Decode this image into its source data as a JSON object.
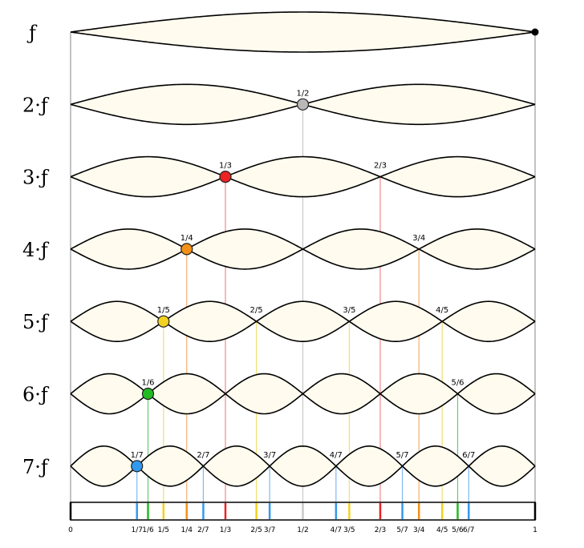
{
  "harmonics": [
    {
      "label": "ƒ",
      "n": 1
    },
    {
      "label": "2·ƒ",
      "n": 2
    },
    {
      "label": "3·ƒ",
      "n": 3
    },
    {
      "label": "4·ƒ",
      "n": 4
    },
    {
      "label": "5·ƒ",
      "n": 5
    },
    {
      "label": "6·ƒ",
      "n": 6
    },
    {
      "label": "7·ƒ",
      "n": 7
    }
  ],
  "node_colors": {
    "1": "#000000",
    "2": "#b8b8b8",
    "3": "#ee2222",
    "4": "#f39019",
    "5": "#f3d11f",
    "6": "#22bb22",
    "7": "#3399ee"
  },
  "node_line_colors": {
    "2": "#c8c8c8",
    "3": "#f08888",
    "4": "#f4b070",
    "5": "#f0e070",
    "6": "#70c870",
    "7": "#80b8ee"
  },
  "axis": {
    "start_label": "0",
    "end_label": "1",
    "ticks": [
      {
        "num": 1,
        "den": 7,
        "label": "1/7"
      },
      {
        "num": 1,
        "den": 6,
        "label": "1/6"
      },
      {
        "num": 1,
        "den": 5,
        "label": "1/5"
      },
      {
        "num": 1,
        "den": 4,
        "label": "1/4"
      },
      {
        "num": 2,
        "den": 7,
        "label": "2/7"
      },
      {
        "num": 1,
        "den": 3,
        "label": "1/3"
      },
      {
        "num": 2,
        "den": 5,
        "label": "2/5"
      },
      {
        "num": 3,
        "den": 7,
        "label": "3/7"
      },
      {
        "num": 1,
        "den": 2,
        "label": "1/2"
      },
      {
        "num": 4,
        "den": 7,
        "label": "4/7"
      },
      {
        "num": 3,
        "den": 5,
        "label": "3/5"
      },
      {
        "num": 2,
        "den": 3,
        "label": "2/3"
      },
      {
        "num": 5,
        "den": 7,
        "label": "5/7"
      },
      {
        "num": 3,
        "den": 4,
        "label": "3/4"
      },
      {
        "num": 4,
        "den": 5,
        "label": "4/5"
      },
      {
        "num": 5,
        "den": 6,
        "label": "5/6"
      },
      {
        "num": 6,
        "den": 7,
        "label": "6/7"
      }
    ]
  },
  "node_labels": [
    {
      "n": 2,
      "k": 1,
      "label": "1/2",
      "dot": true
    },
    {
      "n": 3,
      "k": 1,
      "label": "1/3",
      "dot": true
    },
    {
      "n": 3,
      "k": 2,
      "label": "2/3",
      "dot": false
    },
    {
      "n": 4,
      "k": 1,
      "label": "1/4",
      "dot": true
    },
    {
      "n": 4,
      "k": 3,
      "label": "3/4",
      "dot": false
    },
    {
      "n": 5,
      "k": 1,
      "label": "1/5",
      "dot": true
    },
    {
      "n": 5,
      "k": 2,
      "label": "2/5",
      "dot": false
    },
    {
      "n": 5,
      "k": 3,
      "label": "3/5",
      "dot": false
    },
    {
      "n": 5,
      "k": 4,
      "label": "4/5",
      "dot": false
    },
    {
      "n": 6,
      "k": 1,
      "label": "1/6",
      "dot": true
    },
    {
      "n": 6,
      "k": 5,
      "label": "5/6",
      "dot": false
    },
    {
      "n": 7,
      "k": 1,
      "label": "1/7",
      "dot": true
    },
    {
      "n": 7,
      "k": 2,
      "label": "2/7",
      "dot": false
    },
    {
      "n": 7,
      "k": 3,
      "label": "3/7",
      "dot": false
    },
    {
      "n": 7,
      "k": 4,
      "label": "4/7",
      "dot": false
    },
    {
      "n": 7,
      "k": 5,
      "label": "5/7",
      "dot": false
    },
    {
      "n": 7,
      "k": 6,
      "label": "6/7",
      "dot": false
    }
  ]
}
